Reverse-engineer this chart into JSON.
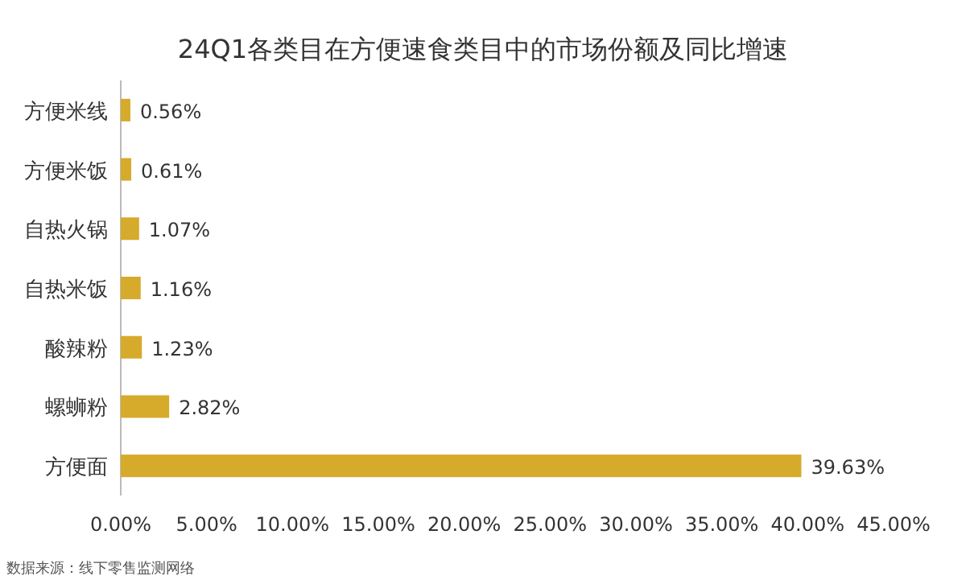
{
  "chart_data": {
    "type": "bar",
    "orientation": "horizontal",
    "title": "24Q1各类目在方便速食类目中的市场份额及同比增速",
    "categories": [
      "方便米线",
      "方便米饭",
      "自热火锅",
      "自热米饭",
      "酸辣粉",
      "螺蛳粉",
      "方便面"
    ],
    "values": [
      0.56,
      0.61,
      1.07,
      1.16,
      1.23,
      2.82,
      39.63
    ],
    "value_labels": [
      "0.56%",
      "0.61%",
      "1.07%",
      "1.16%",
      "1.23%",
      "2.82%",
      "39.63%"
    ],
    "color": "#d6aa2a",
    "xlim": [
      0,
      45
    ],
    "xticks": [
      {
        "value": 0,
        "label": "0.00%"
      },
      {
        "value": 5,
        "label": "5.00%"
      },
      {
        "value": 10,
        "label": "10.00%"
      },
      {
        "value": 15,
        "label": "15.00%"
      },
      {
        "value": 20,
        "label": "20.00%"
      },
      {
        "value": 25,
        "label": "25.00%"
      },
      {
        "value": 30,
        "label": "30.00%"
      },
      {
        "value": 35,
        "label": "35.00%"
      },
      {
        "value": 40,
        "label": "40.00%"
      },
      {
        "value": 45,
        "label": "45.00%"
      }
    ],
    "grid": false,
    "annotations": [
      "数据来源：线下零售监测网络"
    ]
  }
}
